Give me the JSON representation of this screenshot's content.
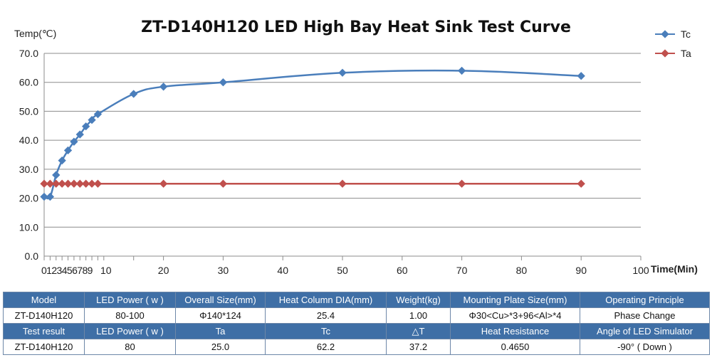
{
  "chart_data": {
    "type": "line",
    "title": "ZT-D140H120 LED High Bay Heat Sink Test Curve",
    "ylabel": "Temp(℃)",
    "xlabel": "Time(Min)",
    "xlim": [
      0,
      100
    ],
    "ylim": [
      0,
      70
    ],
    "xticks": [
      10,
      20,
      30,
      40,
      50,
      60,
      70,
      80,
      90,
      100
    ],
    "xticks_minor_labels": "0123456789",
    "yticks": [
      "0.0",
      "10.0",
      "20.0",
      "30.0",
      "40.0",
      "50.0",
      "60.0",
      "70.0"
    ],
    "grid": true,
    "legend": "top-right",
    "series": [
      {
        "name": "Tc",
        "color": "#4a7ebb",
        "x": [
          0,
          1,
          2,
          3,
          4,
          5,
          6,
          7,
          8,
          9,
          15,
          20,
          30,
          50,
          70,
          90
        ],
        "y": [
          20.5,
          20.5,
          28.0,
          33.0,
          36.5,
          39.5,
          42.0,
          44.8,
          47.0,
          49.0,
          56.0,
          58.5,
          60.0,
          63.3,
          64.0,
          62.2
        ]
      },
      {
        "name": "Ta",
        "color": "#c0504d",
        "x": [
          0,
          1,
          2,
          3,
          4,
          5,
          6,
          7,
          8,
          9,
          20,
          30,
          50,
          70,
          90
        ],
        "y": [
          25.0,
          25.0,
          25.0,
          25.0,
          25.0,
          25.0,
          25.0,
          25.0,
          25.0,
          25.0,
          25.0,
          25.0,
          25.0,
          25.0,
          25.0
        ]
      }
    ]
  },
  "table": {
    "row1": [
      "Model",
      "LED Power ( w )",
      "Overall Size(mm)",
      "Heat Column DIA(mm)",
      "Weight(kg)",
      "Mounting Plate Size(mm)",
      "Operating Principle"
    ],
    "row2": [
      "ZT-D140H120",
      "80-100",
      "Φ140*124",
      "25.4",
      "1.00",
      "Φ30<Cu>*3+96<Al>*4",
      "Phase Change"
    ],
    "row3": [
      "Test result",
      "LED Power ( w )",
      "Ta",
      "Tc",
      "△T",
      "Heat Resistance",
      "Angle of LED Simulator"
    ],
    "row4": [
      "ZT-D140H120",
      "80",
      "25.0",
      "62.2",
      "37.2",
      "0.4650",
      "-90° ( Down )"
    ]
  }
}
